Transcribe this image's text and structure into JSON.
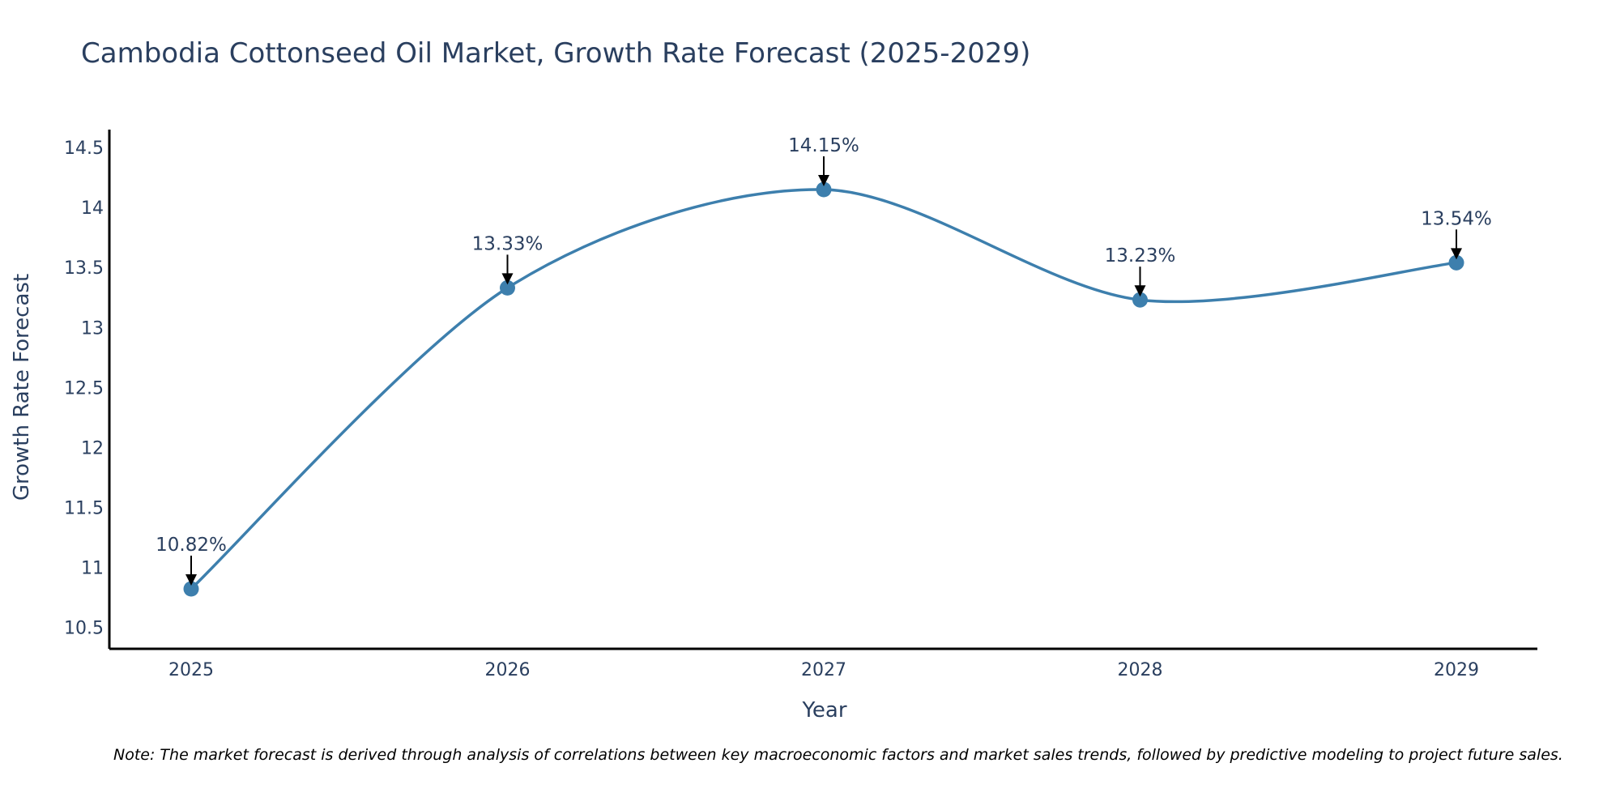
{
  "chart_data": {
    "type": "line",
    "title": "Cambodia Cottonseed Oil Market, Growth Rate Forecast (2025-2029)",
    "xlabel": "Year",
    "ylabel": "Growth Rate Forecast",
    "categories": [
      "2025",
      "2026",
      "2027",
      "2028",
      "2029"
    ],
    "series": [
      {
        "name": "Growth Rate Forecast",
        "values": [
          10.82,
          13.33,
          14.15,
          13.23,
          13.54
        ],
        "data_labels": [
          "10.82%",
          "13.33%",
          "14.15%",
          "13.23%",
          "13.54%"
        ]
      }
    ],
    "ylim": [
      10.32,
      14.65
    ],
    "y_ticks": [
      10.5,
      11,
      11.5,
      12,
      12.5,
      13,
      13.5,
      14,
      14.5
    ],
    "y_tick_labels": [
      "10.5",
      "11",
      "11.5",
      "12",
      "12.5",
      "13",
      "13.5",
      "14",
      "14.5"
    ],
    "line_shape": "spline",
    "grid": false,
    "legend": "none",
    "note": "Note: The market forecast is derived through analysis of correlations between key macroeconomic factors and market sales trends, followed by predictive modeling to project future sales."
  },
  "colors": {
    "line": "#3d7fad",
    "marker": "#3d7fad",
    "text": "#2a3f5f",
    "axis": "#000000",
    "arrow": "#000000"
  }
}
